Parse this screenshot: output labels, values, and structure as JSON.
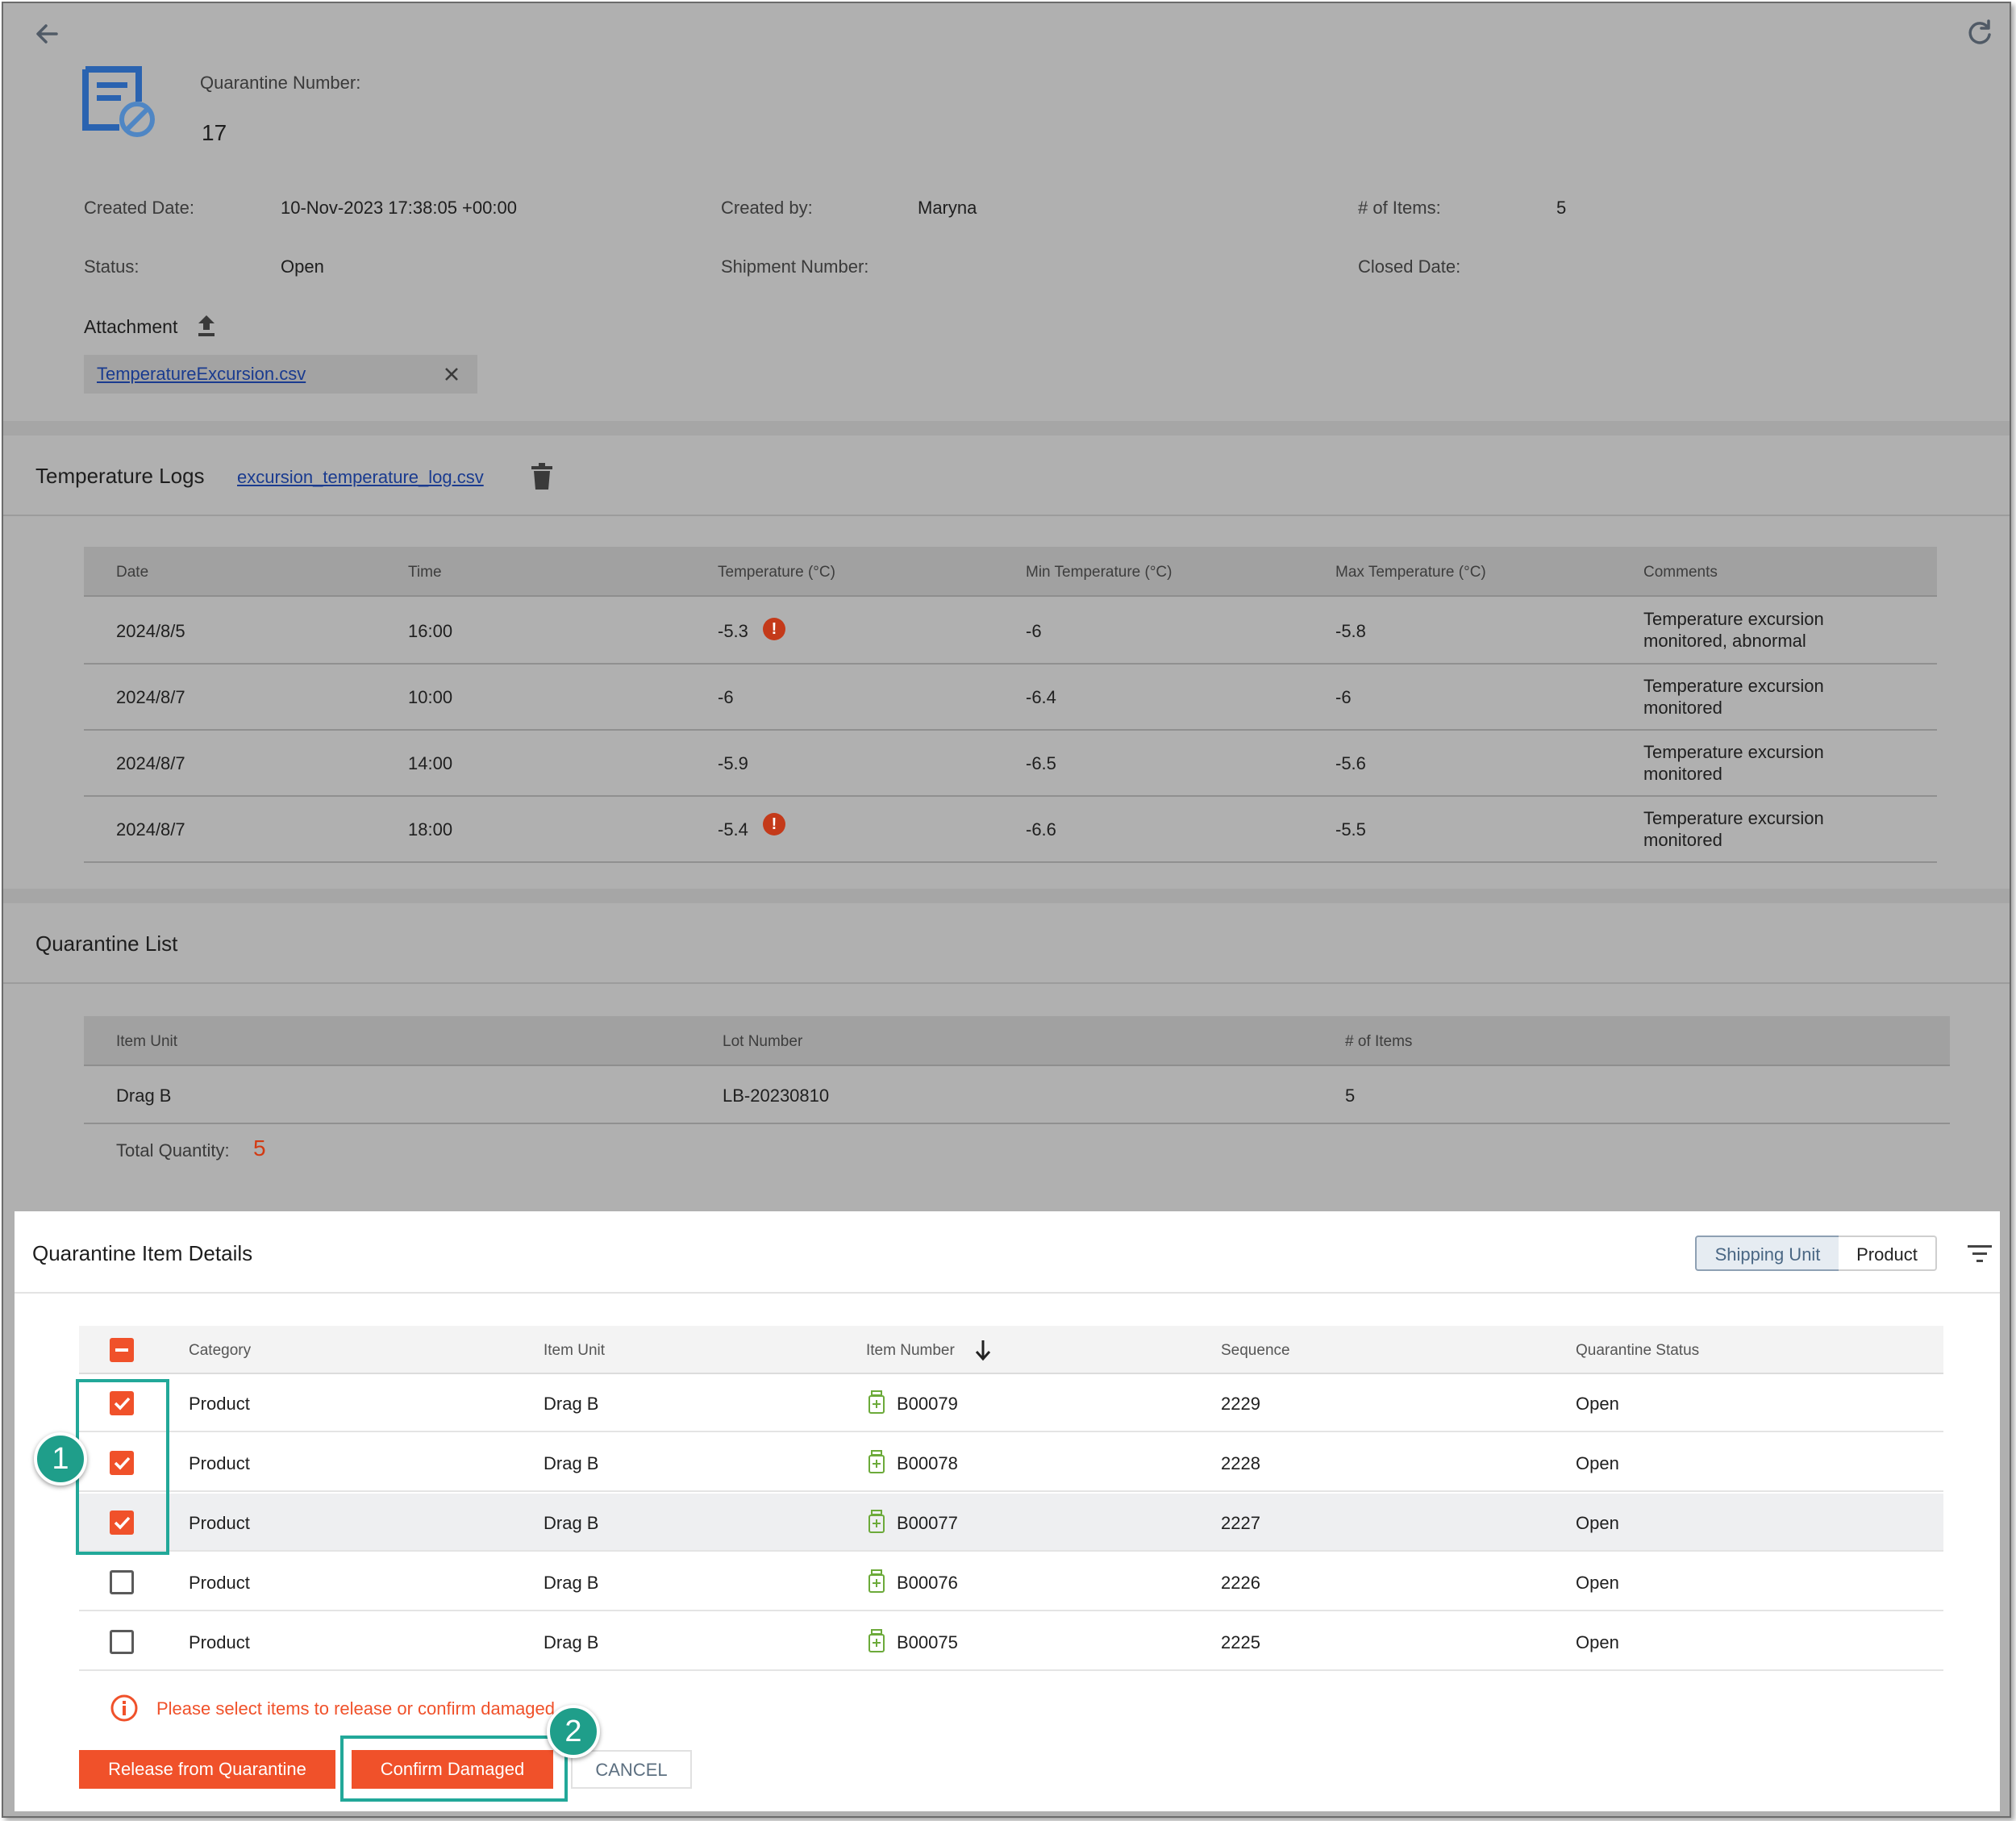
{
  "header": {
    "quarantine_number_label": "Quarantine Number:",
    "quarantine_number": "17",
    "created_date_label": "Created Date:",
    "created_date": "10-Nov-2023 17:38:05 +00:00",
    "created_by_label": "Created by:",
    "created_by": "Maryna",
    "items_label": "# of Items:",
    "items": "5",
    "status_label": "Status:",
    "status": "Open",
    "shipment_number_label": "Shipment Number:",
    "shipment_number": "",
    "closed_date_label": "Closed Date:",
    "closed_date": "",
    "attachment_label": "Attachment",
    "attachment_file": "TemperatureExcursion.csv"
  },
  "temperature_logs": {
    "title": "Temperature Logs",
    "file": "excursion_temperature_log.csv",
    "columns": [
      "Date",
      "Time",
      "Temperature (°C)",
      "Min Temperature (°C)",
      "Max Temperature (°C)",
      "Comments"
    ],
    "rows": [
      {
        "date": "2024/8/5",
        "time": "16:00",
        "temp": "-5.3",
        "warn": true,
        "min": "-6",
        "max": "-5.8",
        "comment1": "Temperature excursion",
        "comment2": "monitored, abnormal"
      },
      {
        "date": "2024/8/7",
        "time": "10:00",
        "temp": "-6",
        "warn": false,
        "min": "-6.4",
        "max": "-6",
        "comment1": "Temperature excursion",
        "comment2": "monitored"
      },
      {
        "date": "2024/8/7",
        "time": "14:00",
        "temp": "-5.9",
        "warn": false,
        "min": "-6.5",
        "max": "-5.6",
        "comment1": "Temperature excursion",
        "comment2": "monitored"
      },
      {
        "date": "2024/8/7",
        "time": "18:00",
        "temp": "-5.4",
        "warn": true,
        "min": "-6.6",
        "max": "-5.5",
        "comment1": "Temperature excursion",
        "comment2": "monitored"
      }
    ]
  },
  "quarantine_list": {
    "title": "Quarantine List",
    "columns": [
      "Item Unit",
      "Lot Number",
      "# of Items"
    ],
    "rows": [
      {
        "item_unit": "Drag B",
        "lot": "LB-20230810",
        "items": "5"
      }
    ],
    "total_label": "Total Quantity:",
    "total": "5"
  },
  "details": {
    "title": "Quarantine Item Details",
    "toggle": [
      "Shipping Unit",
      "Product"
    ],
    "columns": [
      "Category",
      "Item Unit",
      "Item Number",
      "Sequence",
      "Quarantine Status"
    ],
    "rows": [
      {
        "checked": true,
        "category": "Product",
        "unit": "Drag B",
        "number": "B00079",
        "seq": "2229",
        "status": "Open"
      },
      {
        "checked": true,
        "category": "Product",
        "unit": "Drag B",
        "number": "B00078",
        "seq": "2228",
        "status": "Open"
      },
      {
        "checked": true,
        "category": "Product",
        "unit": "Drag B",
        "number": "B00077",
        "seq": "2227",
        "status": "Open"
      },
      {
        "checked": false,
        "category": "Product",
        "unit": "Drag B",
        "number": "B00076",
        "seq": "2226",
        "status": "Open"
      },
      {
        "checked": false,
        "category": "Product",
        "unit": "Drag B",
        "number": "B00075",
        "seq": "2225",
        "status": "Open"
      }
    ],
    "message": "Please select items to release or confirm damaged",
    "release_label": "Release from Quarantine",
    "confirm_label": "Confirm Damaged",
    "cancel_label": "CANCEL"
  },
  "callouts": [
    "1",
    "2"
  ],
  "colors": {
    "accent": "#f0512a",
    "callout": "#1f9e8a",
    "link": "#1a3b8f",
    "warn": "#c43a1a"
  }
}
